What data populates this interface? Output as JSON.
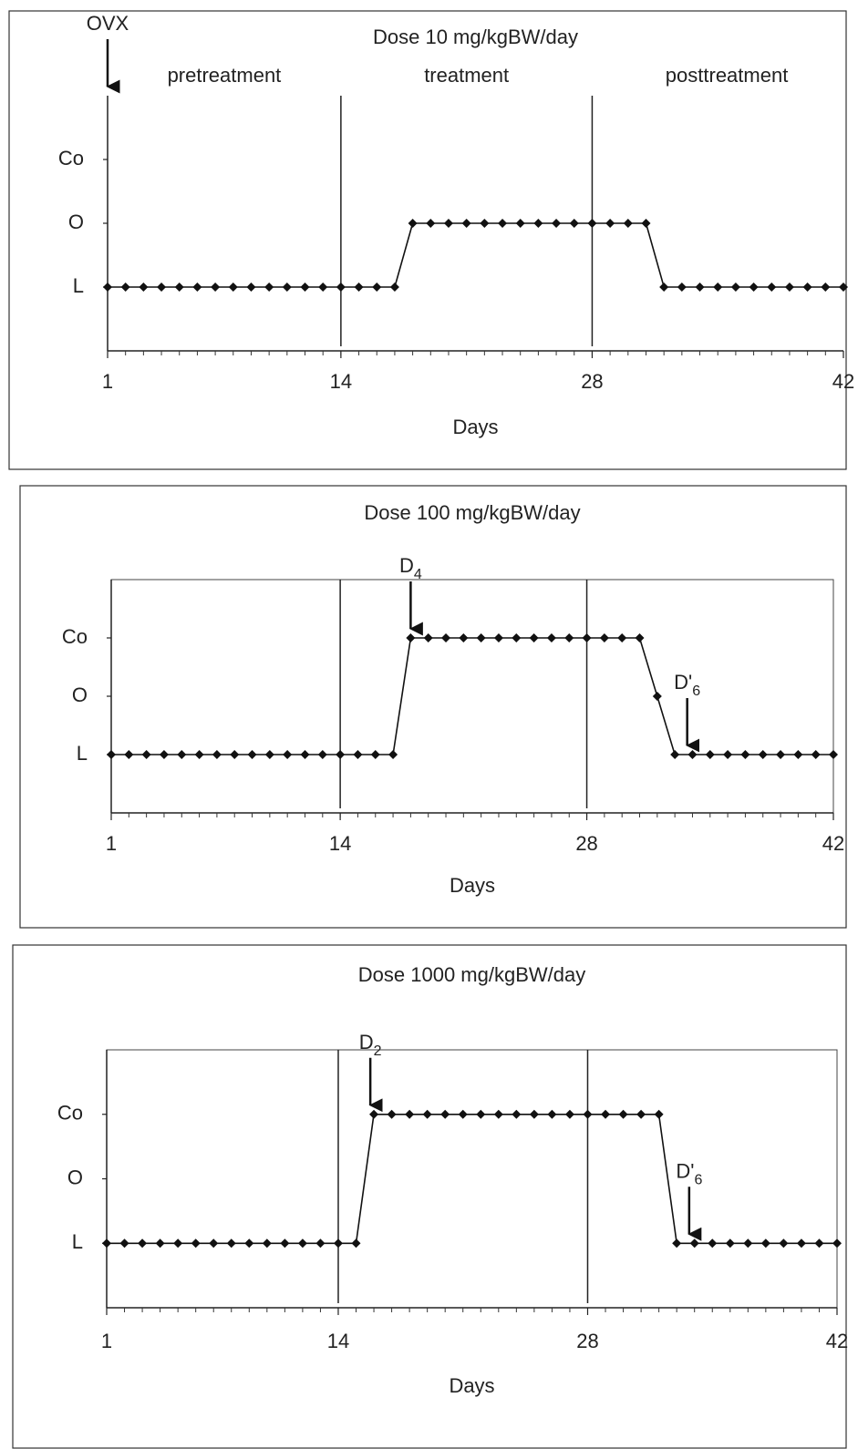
{
  "chart_data": [
    {
      "type": "line",
      "title": "Dose 10 mg/kgBW/day",
      "xlabel": "Days",
      "x": [
        1,
        2,
        3,
        4,
        5,
        6,
        7,
        8,
        9,
        10,
        11,
        12,
        13,
        14,
        15,
        16,
        17,
        18,
        19,
        20,
        21,
        22,
        23,
        24,
        25,
        26,
        27,
        28,
        29,
        30,
        31,
        32,
        33,
        34,
        35,
        36,
        37,
        38,
        39,
        40,
        41,
        42
      ],
      "series": [
        {
          "color": "#111111",
          "marker": "diamond",
          "values": [
            1,
            1,
            1,
            1,
            1,
            1,
            1,
            1,
            1,
            1,
            1,
            1,
            1,
            1,
            1,
            1,
            1,
            2,
            2,
            2,
            2,
            2,
            2,
            2,
            2,
            2,
            2,
            2,
            2,
            2,
            2,
            1,
            1,
            1,
            1,
            1,
            1,
            1,
            1,
            1,
            1,
            1
          ]
        }
      ],
      "xlim": [
        1,
        42
      ],
      "ylim": [
        0,
        4
      ],
      "xticks": [
        1,
        14,
        28,
        42
      ],
      "yticks": [
        {
          "value": 1,
          "label": "L"
        },
        {
          "value": 2,
          "label": "O"
        },
        {
          "value": 3,
          "label": "Co"
        }
      ],
      "vlines": [
        14,
        28
      ],
      "frame": false,
      "annotations": [
        {
          "text": "OVX",
          "x": 1,
          "y": 4,
          "arrow": true
        },
        {
          "text": "pretreatment",
          "x": 7.5,
          "y": 4,
          "arrow": false
        },
        {
          "text": "treatment",
          "x": 21,
          "y": 4,
          "arrow": false
        },
        {
          "text": "posttreatment",
          "x": 35.5,
          "y": 4,
          "arrow": false
        }
      ]
    },
    {
      "type": "line",
      "title": "Dose 100 mg/kgBW/day",
      "xlabel": "Days",
      "x": [
        1,
        2,
        3,
        4,
        5,
        6,
        7,
        8,
        9,
        10,
        11,
        12,
        13,
        14,
        15,
        16,
        17,
        18,
        19,
        20,
        21,
        22,
        23,
        24,
        25,
        26,
        27,
        28,
        29,
        30,
        31,
        32,
        33,
        34,
        35,
        36,
        37,
        38,
        39,
        40,
        41,
        42
      ],
      "series": [
        {
          "color": "#111111",
          "marker": "diamond",
          "values": [
            1,
            1,
            1,
            1,
            1,
            1,
            1,
            1,
            1,
            1,
            1,
            1,
            1,
            1,
            1,
            1,
            1,
            3,
            3,
            3,
            3,
            3,
            3,
            3,
            3,
            3,
            3,
            3,
            3,
            3,
            3,
            2,
            1,
            1,
            1,
            1,
            1,
            1,
            1,
            1,
            1,
            1
          ]
        }
      ],
      "xlim": [
        1,
        42
      ],
      "ylim": [
        0,
        4
      ],
      "xticks": [
        1,
        14,
        28,
        42
      ],
      "yticks": [
        {
          "value": 1,
          "label": "L"
        },
        {
          "value": 2,
          "label": "O"
        },
        {
          "value": 3,
          "label": "Co"
        }
      ],
      "vlines": [
        14,
        28
      ],
      "frame": true,
      "annotations": [
        {
          "text": "D",
          "sub": "4",
          "x": 18,
          "y": 3,
          "arrow": true
        },
        {
          "text": "D'",
          "sub": "6",
          "x": 33.7,
          "y": 1,
          "arrow": true
        }
      ]
    },
    {
      "type": "line",
      "title": "Dose 1000 mg/kgBW/day",
      "xlabel": "Days",
      "x": [
        1,
        2,
        3,
        4,
        5,
        6,
        7,
        8,
        9,
        10,
        11,
        12,
        13,
        14,
        15,
        16,
        17,
        18,
        19,
        20,
        21,
        22,
        23,
        24,
        25,
        26,
        27,
        28,
        29,
        30,
        31,
        32,
        33,
        34,
        35,
        36,
        37,
        38,
        39,
        40,
        41,
        42
      ],
      "series": [
        {
          "color": "#111111",
          "marker": "diamond",
          "values": [
            1,
            1,
            1,
            1,
            1,
            1,
            1,
            1,
            1,
            1,
            1,
            1,
            1,
            1,
            1,
            3,
            3,
            3,
            3,
            3,
            3,
            3,
            3,
            3,
            3,
            3,
            3,
            3,
            3,
            3,
            3,
            3,
            1,
            1,
            1,
            1,
            1,
            1,
            1,
            1,
            1,
            1
          ]
        }
      ],
      "xlim": [
        1,
        42
      ],
      "ylim": [
        0,
        4
      ],
      "xticks": [
        1,
        14,
        28,
        42
      ],
      "yticks": [
        {
          "value": 1,
          "label": "L"
        },
        {
          "value": 2,
          "label": "O"
        },
        {
          "value": 3,
          "label": "Co"
        }
      ],
      "vlines": [
        14,
        28
      ],
      "frame": true,
      "annotations": [
        {
          "text": "D",
          "sub": "2",
          "x": 15.8,
          "y": 3,
          "arrow": true
        },
        {
          "text": "D'",
          "sub": "6",
          "x": 33.7,
          "y": 1,
          "arrow": true
        }
      ]
    }
  ]
}
